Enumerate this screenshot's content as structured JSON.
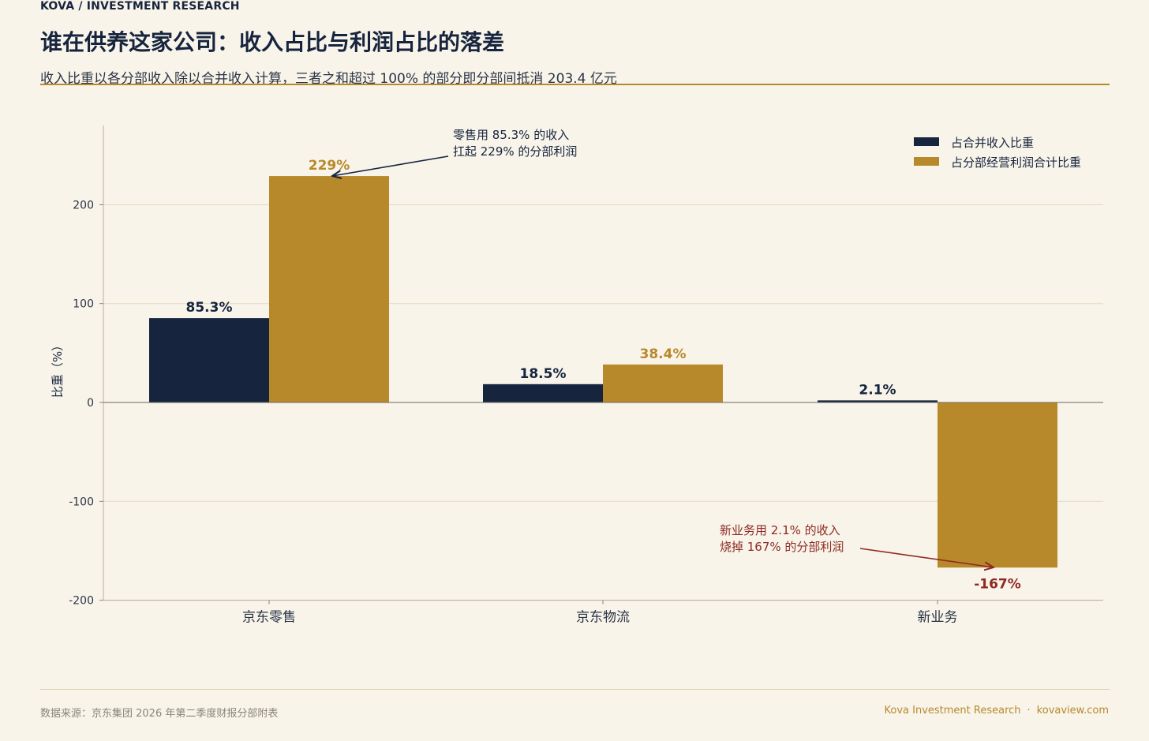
{
  "header": {
    "brand": "KOVA / INVESTMENT RESEARCH",
    "title": "谁在供养这家公司：收入占比与利润占比的落差",
    "subtitle": "收入比重以各分部收入除以合并收入计算，三者之和超过 100% 的部分即分部间抵消 203.4 亿元"
  },
  "colors": {
    "navy": "#16243d",
    "gold": "#b8892b",
    "red": "#8e2a22",
    "grid": "#e2dabf",
    "background": "#f8f4ea"
  },
  "chart_data": {
    "type": "bar",
    "categories": [
      "京东零售",
      "京东物流",
      "新业务"
    ],
    "series": [
      {
        "name": "占合并收入比重",
        "values": [
          85.3,
          18.5,
          2.1
        ],
        "labels": [
          "85.3%",
          "18.5%",
          "2.1%"
        ],
        "color": "#16243d"
      },
      {
        "name": "占分部经营利润合计比重",
        "values": [
          229,
          38.4,
          -167
        ],
        "labels": [
          "229%",
          "38.4%",
          "-167%"
        ],
        "color": "#b8892b"
      }
    ],
    "ylabel": "比重（%）",
    "xlabel": "",
    "ylim": [
      -200,
      280
    ],
    "yticks": [
      -200,
      -100,
      0,
      100,
      200
    ],
    "grid": true,
    "legend_position": "top-right",
    "annotations": [
      {
        "lines": [
          "零售用 85.3% 的收入",
          "扛起 229% 的分部利润"
        ],
        "target_category": "京东零售",
        "target_series": 1,
        "color": "#16243d"
      },
      {
        "lines": [
          "新业务用 2.1% 的收入",
          "烧掉 167% 的分部利润"
        ],
        "target_category": "新业务",
        "target_series": 1,
        "color": "#8e2a22"
      }
    ]
  },
  "footer": {
    "source": "数据来源：京东集团 2026 年第二季度财报分部附表",
    "brand": "Kova Investment Research",
    "separator": "·",
    "site": "kovaview.com"
  }
}
